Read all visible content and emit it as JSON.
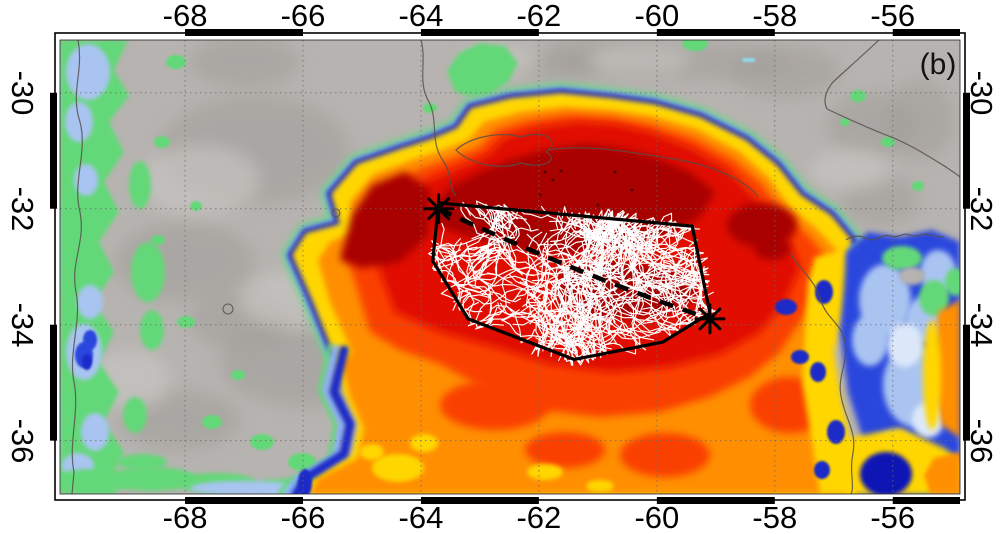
{
  "panel_label": "(b)",
  "axes": {
    "lon_ticks": [
      {
        "label": "-68",
        "value": -68
      },
      {
        "label": "-66",
        "value": -66
      },
      {
        "label": "-64",
        "value": -64
      },
      {
        "label": "-62",
        "value": -62
      },
      {
        "label": "-60",
        "value": -60
      },
      {
        "label": "-58",
        "value": -58
      },
      {
        "label": "-56",
        "value": -56
      }
    ],
    "lat_ticks": [
      {
        "label": "-30",
        "value": -30
      },
      {
        "label": "-32",
        "value": -32
      },
      {
        "label": "-34",
        "value": -34
      },
      {
        "label": "-36",
        "value": -36
      }
    ],
    "lon_range": [
      -70.12,
      -54.86
    ],
    "lat_range": [
      -29.09,
      -36.92
    ],
    "grid_step_deg": 2
  },
  "overlay": {
    "marker_glyph": "asterisk",
    "track_lonlat": [
      [
        -63.7,
        -32.0
      ],
      [
        -59.1,
        -33.9
      ]
    ],
    "system_polygon_lonlat": [
      [
        -63.7,
        -31.9
      ],
      [
        -59.4,
        -32.3
      ],
      [
        -59.1,
        -33.8
      ],
      [
        -59.9,
        -34.3
      ],
      [
        -61.4,
        -34.6
      ],
      [
        -63.2,
        -33.9
      ],
      [
        -63.8,
        -32.9
      ]
    ]
  },
  "colors": {
    "gray_land": "#b7b3b0",
    "gray_dark": "#a19d99",
    "gray_light": "#cbc8c5",
    "green": "#63d878",
    "blue_pale": "#a9c4f1",
    "blue_light": "#8ab2f4",
    "blue": "#2b46dd",
    "blue_dark": "#1b2cc8",
    "blue_deep": "#0a16b5",
    "cyan": "#8fd9ea",
    "white_cloud": "#dce8fa",
    "yellow": "#ffd600",
    "orange": "#ff8f00",
    "red_orange": "#fa4000",
    "red": "#e01000",
    "red_dark": "#a90000",
    "border_line": "#56504b",
    "grid_line": "#6a6a6a",
    "frame": "#000000",
    "overlay_ink": "#000000",
    "lightning": "#ffffff",
    "label_ink": "#000000"
  }
}
